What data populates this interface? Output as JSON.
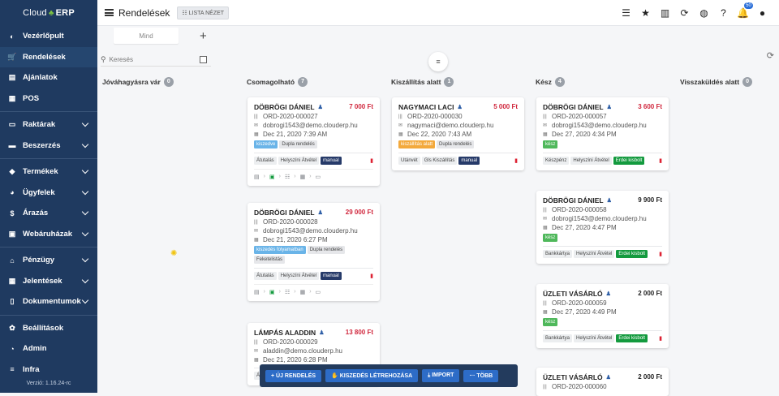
{
  "brand": {
    "cloud": "Cloud",
    "erp": "ERP"
  },
  "sidebar": {
    "items": [
      {
        "label": "Vezérlőpult",
        "icon": "palette-icon",
        "chev": false
      },
      {
        "label": "Rendelések",
        "icon": "cart-icon",
        "chev": false
      },
      {
        "label": "Ajánlatok",
        "icon": "document-icon",
        "chev": false
      },
      {
        "label": "POS",
        "icon": "pos-icon",
        "chev": false
      },
      {
        "label": "Raktárak",
        "icon": "warehouse-icon",
        "chev": true
      },
      {
        "label": "Beszerzés",
        "icon": "truck-icon",
        "chev": true
      },
      {
        "label": "Termékek",
        "icon": "tags-icon",
        "chev": true
      },
      {
        "label": "Ügyfelek",
        "icon": "users-icon",
        "chev": true
      },
      {
        "label": "Árazás",
        "icon": "dollar-icon",
        "chev": true
      },
      {
        "label": "Webáruházak",
        "icon": "store-icon",
        "chev": true
      },
      {
        "label": "Pénzügy",
        "icon": "bank-icon",
        "chev": true
      },
      {
        "label": "Jelentések",
        "icon": "table-icon",
        "chev": true
      },
      {
        "label": "Dokumentumok",
        "icon": "file-icon",
        "chev": true
      },
      {
        "label": "Beállítások",
        "icon": "gear-icon",
        "chev": false
      },
      {
        "label": "Admin",
        "icon": "admin-icon",
        "chev": false
      },
      {
        "label": "Infra",
        "icon": "server-icon",
        "chev": false
      }
    ],
    "version": "Verzió: 1.16.24-rc"
  },
  "header": {
    "title": "Rendelések",
    "list_view": "LISTA NÉZET",
    "notification_count": "50"
  },
  "tabs": [
    {
      "label": "Mind"
    }
  ],
  "search": {
    "placeholder": "Keresés"
  },
  "columns": [
    {
      "title": "Jóváhagyásra vár",
      "count": "0"
    },
    {
      "title": "Csomagolható",
      "count": "7"
    },
    {
      "title": "Kiszállítás alatt",
      "count": "1"
    },
    {
      "title": "Kész",
      "count": "4"
    },
    {
      "title": "Visszaküldés alatt",
      "count": "0"
    }
  ],
  "cards": {
    "csomag": [
      {
        "name": "DÖBRÖGI DÁNIEL",
        "price": "7 000 Ft",
        "order": "ORD-2020-000027",
        "email": "dobrogi1543@demo.clouderp.hu",
        "date": "Dec 21, 2020 7:39 AM",
        "tags": [
          "kiszedve",
          "Dupla rendelés"
        ],
        "pay": [
          "Átutalás",
          "Helyszíni Átvétel",
          "manual"
        ]
      },
      {
        "name": "DÖBRÖGI DÁNIEL",
        "price": "29 000 Ft",
        "order": "ORD-2020-000028",
        "email": "dobrogi1543@demo.clouderp.hu",
        "date": "Dec 21, 2020 6:27 PM",
        "tags": [
          "kiszedés folyamatban",
          "Dupla rendelés",
          "Feketelistás"
        ],
        "pay": [
          "Átutalás",
          "Helyszíni Átvétel",
          "manual"
        ]
      },
      {
        "name": "LÁMPÁS ALADDIN",
        "price": "13 800 Ft",
        "order": "ORD-2020-000029",
        "email": "aladdin@demo.clouderp.hu",
        "date": "Dec 21, 2020 6:28 PM",
        "tags": [],
        "pay": [
          "Átutalás",
          "Helyszíni Átvétel",
          "manual"
        ]
      }
    ],
    "kiszall": [
      {
        "name": "NAGYMACI LACI",
        "price": "5 000 Ft",
        "order": "ORD-2020-000030",
        "email": "nagymaci@demo.clouderp.hu",
        "date": "Dec 22, 2020 7:43 AM",
        "tags": [
          "kiszállítás alatt",
          "Dupla rendelés"
        ],
        "pay": [
          "Utánvét",
          "Gls Kiszállítás",
          "manual"
        ]
      }
    ],
    "kesz": [
      {
        "name": "DÖBRÖGI DÁNIEL",
        "price": "3 600 Ft",
        "order": "ORD-2020-000057",
        "email": "dobrogi1543@demo.clouderp.hu",
        "date": "Dec 27, 2020 4:34 PM",
        "tags": [
          "kész"
        ],
        "pay": [
          "Készpénz",
          "Helyszíni Átvétel",
          "Erdei kisbolt"
        ]
      },
      {
        "name": "DÖBRÖGI DÁNIEL",
        "price": "9 900 Ft",
        "order": "ORD-2020-000058",
        "email": "dobrogi1543@demo.clouderp.hu",
        "date": "Dec 27, 2020 4:47 PM",
        "tags": [
          "kész"
        ],
        "pay": [
          "Bankkártya",
          "Helyszíni Átvétel",
          "Erdei kisbolt"
        ]
      },
      {
        "name": "ÜZLETI VÁSÁRLÓ",
        "price": "2 000 Ft",
        "order": "ORD-2020-000059",
        "email": "",
        "date": "Dec 27, 2020 4:49 PM",
        "tags": [
          "kész"
        ],
        "pay": [
          "Bankkártya",
          "Helyszíni Átvétel",
          "Erdei kisbolt"
        ]
      },
      {
        "name": "ÜZLETI VÁSÁRLÓ",
        "price": "2 000 Ft",
        "order": "ORD-2020-000060",
        "email": "",
        "date": "",
        "tags": [],
        "pay": []
      }
    ]
  },
  "actions": {
    "new_order": "+ ÚJ RENDELÉS",
    "create_picking": "KISZEDÉS LÉTREHOZÁSA",
    "import": "IMPORT",
    "more": "··· TÖBB"
  },
  "colors": {
    "sidebar": "#1f3a60",
    "price_red": "#d0263c",
    "price_dark": "#222",
    "accent": "#2d6cc7"
  }
}
